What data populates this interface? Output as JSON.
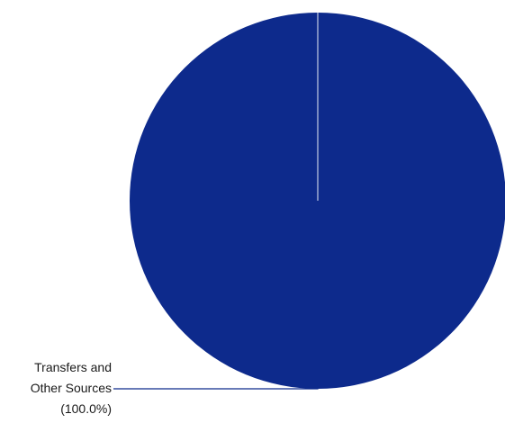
{
  "chart_data": {
    "type": "pie",
    "slices": [
      {
        "label_lines": [
          "Transfers and",
          "Other Sources",
          "(100.0%)"
        ],
        "value": 100.0,
        "color": "#0d2a8c"
      }
    ],
    "legend": "none",
    "start_angle": "12 o'clock",
    "edge_color": "#e8ecf5",
    "leader_color": "#0d2a8c"
  }
}
